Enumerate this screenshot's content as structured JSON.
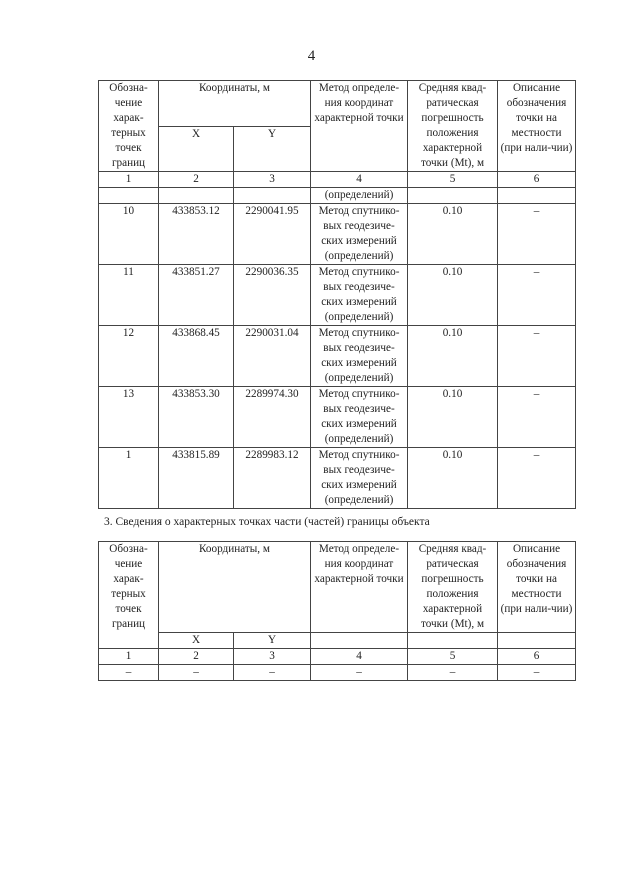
{
  "page_number": "4",
  "table_header": {
    "designation": "Обозна-чение харак-терных точек границ",
    "coordinates": "Координаты, м",
    "x": "X",
    "y": "Y",
    "method": "Метод определе-ния координат характерной точки",
    "error": "Средняя квад-ратическая погрешность положения характерной точки (Mt), м",
    "description": "Описание обозначения точки на местности (при нали-чии)",
    "col_numbers": [
      "1",
      "2",
      "3",
      "4",
      "5",
      "6"
    ]
  },
  "table1": {
    "continuation": "(определений)",
    "rows": [
      {
        "point": "10",
        "x": "433853.12",
        "y": "2290041.95",
        "method": "Метод спутнико-вых геодезиче-ских измерений (определений)",
        "mt": "0.10",
        "desc": "–"
      },
      {
        "point": "11",
        "x": "433851.27",
        "y": "2290036.35",
        "method": "Метод спутнико-вых геодезиче-ских измерений (определений)",
        "mt": "0.10",
        "desc": "–"
      },
      {
        "point": "12",
        "x": "433868.45",
        "y": "2290031.04",
        "method": "Метод спутнико-вых геодезиче-ских измерений (определений)",
        "mt": "0.10",
        "desc": "–"
      },
      {
        "point": "13",
        "x": "433853.30",
        "y": "2289974.30",
        "method": "Метод спутнико-вых геодезиче-ских измерений (определений)",
        "mt": "0.10",
        "desc": "–"
      },
      {
        "point": "1",
        "x": "433815.89",
        "y": "2289983.12",
        "method": "Метод спутнико-вых геодезиче-ских измерений (определений)",
        "mt": "0.10",
        "desc": "–"
      }
    ]
  },
  "section3_title": "3. Сведения о характерных точках части (частей) границы объекта",
  "table2": {
    "rows": [
      {
        "point": "–",
        "x": "–",
        "y": "–",
        "method": "–",
        "mt": "–",
        "desc": "–"
      }
    ]
  }
}
